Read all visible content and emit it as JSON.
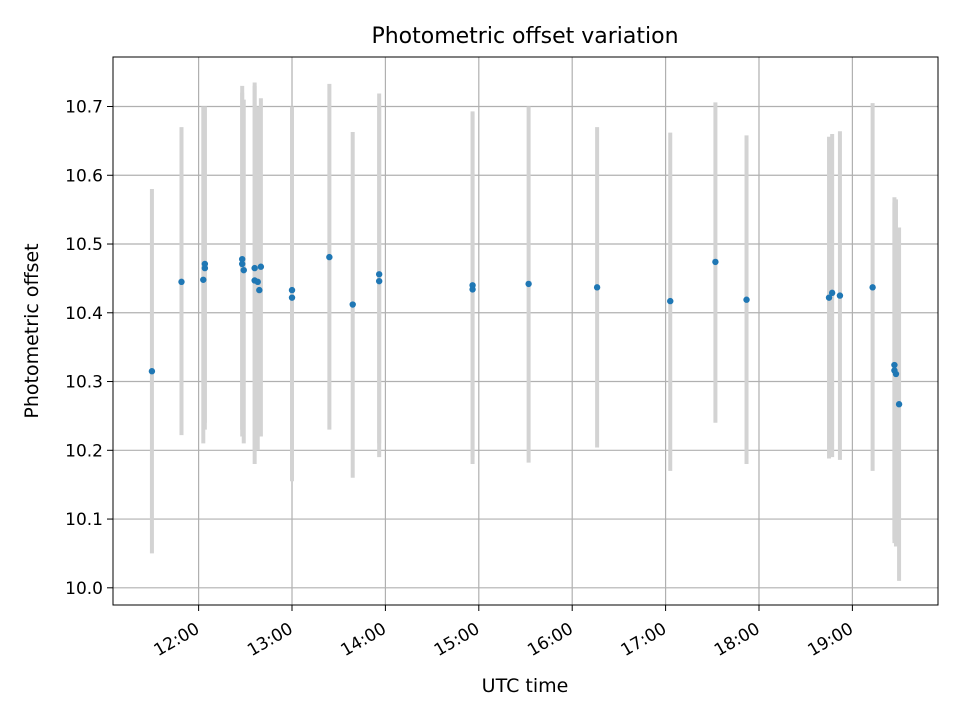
{
  "chart_data": {
    "type": "scatter",
    "title": "Photometric offset variation",
    "xlabel": "UTC time",
    "ylabel": "Photometric offset",
    "x_ticks": [
      "12:00",
      "13:00",
      "14:00",
      "15:00",
      "16:00",
      "17:00",
      "18:00",
      "19:00"
    ],
    "y_ticks": [
      "10.0",
      "10.1",
      "10.2",
      "10.3",
      "10.4",
      "10.5",
      "10.6",
      "10.7"
    ],
    "xlim": [
      "11:05",
      "19:55"
    ],
    "ylim": [
      9.975,
      10.772
    ],
    "grid": true,
    "point_color": "#1f77b4",
    "errorbar_color": "#d3d3d3",
    "points": [
      {
        "t": "11:30",
        "y": 10.315,
        "lo": 10.05,
        "hi": 10.58
      },
      {
        "t": "11:49",
        "y": 10.445,
        "lo": 10.222,
        "hi": 10.67
      },
      {
        "t": "12:03",
        "y": 10.448,
        "lo": 10.21,
        "hi": 10.7
      },
      {
        "t": "12:04",
        "y": 10.465,
        "lo": 10.23,
        "hi": 10.7
      },
      {
        "t": "12:04",
        "y": 10.471,
        "lo": 10.24,
        "hi": 10.7
      },
      {
        "t": "12:28",
        "y": 10.478,
        "lo": 10.23,
        "hi": 10.73
      },
      {
        "t": "12:28",
        "y": 10.471,
        "lo": 10.22,
        "hi": 10.72
      },
      {
        "t": "12:29",
        "y": 10.462,
        "lo": 10.21,
        "hi": 10.71
      },
      {
        "t": "12:36",
        "y": 10.447,
        "lo": 10.18,
        "hi": 10.735
      },
      {
        "t": "12:36",
        "y": 10.465,
        "lo": 10.2,
        "hi": 10.73
      },
      {
        "t": "12:38",
        "y": 10.445,
        "lo": 10.2,
        "hi": 10.7
      },
      {
        "t": "12:39",
        "y": 10.433,
        "lo": 10.22,
        "hi": 10.68
      },
      {
        "t": "12:40",
        "y": 10.467,
        "lo": 10.22,
        "hi": 10.712
      },
      {
        "t": "13:00",
        "y": 10.433,
        "lo": 10.155,
        "hi": 10.7
      },
      {
        "t": "13:00",
        "y": 10.422,
        "lo": 10.16,
        "hi": 10.695
      },
      {
        "t": "13:24",
        "y": 10.481,
        "lo": 10.23,
        "hi": 10.733
      },
      {
        "t": "13:39",
        "y": 10.412,
        "lo": 10.16,
        "hi": 10.663
      },
      {
        "t": "13:56",
        "y": 10.456,
        "lo": 10.19,
        "hi": 10.719
      },
      {
        "t": "13:56",
        "y": 10.446,
        "lo": 10.21,
        "hi": 10.7
      },
      {
        "t": "14:56",
        "y": 10.44,
        "lo": 10.18,
        "hi": 10.693
      },
      {
        "t": "14:56",
        "y": 10.434,
        "lo": 10.19,
        "hi": 10.69
      },
      {
        "t": "15:32",
        "y": 10.442,
        "lo": 10.182,
        "hi": 10.7
      },
      {
        "t": "16:16",
        "y": 10.437,
        "lo": 10.204,
        "hi": 10.67
      },
      {
        "t": "17:03",
        "y": 10.417,
        "lo": 10.17,
        "hi": 10.662
      },
      {
        "t": "17:32",
        "y": 10.474,
        "lo": 10.24,
        "hi": 10.706
      },
      {
        "t": "17:52",
        "y": 10.419,
        "lo": 10.18,
        "hi": 10.658
      },
      {
        "t": "18:45",
        "y": 10.422,
        "lo": 10.188,
        "hi": 10.656
      },
      {
        "t": "18:47",
        "y": 10.429,
        "lo": 10.19,
        "hi": 10.66
      },
      {
        "t": "18:52",
        "y": 10.425,
        "lo": 10.186,
        "hi": 10.664
      },
      {
        "t": "19:13",
        "y": 10.437,
        "lo": 10.17,
        "hi": 10.705
      },
      {
        "t": "19:27",
        "y": 10.324,
        "lo": 10.065,
        "hi": 10.568
      },
      {
        "t": "19:27",
        "y": 10.316,
        "lo": 10.07,
        "hi": 10.56
      },
      {
        "t": "19:28",
        "y": 10.311,
        "lo": 10.06,
        "hi": 10.565
      },
      {
        "t": "19:30",
        "y": 10.267,
        "lo": 10.01,
        "hi": 10.524
      }
    ]
  }
}
